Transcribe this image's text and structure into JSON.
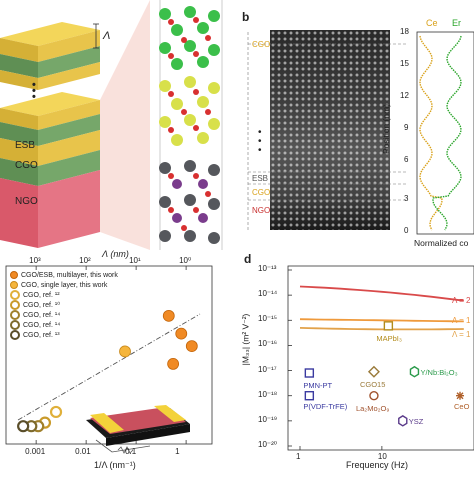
{
  "panel_a": {
    "lambda_label": "Λ",
    "layer_labels": [
      "ESB",
      "CGO",
      "NGO"
    ],
    "dots": "•\n•\n•"
  },
  "panel_b": {
    "letter": "b",
    "stem_labels": [
      "CGO",
      "ESB",
      "CGO",
      "NGO"
    ],
    "eels_legend": [
      "Ce",
      "Er"
    ],
    "position_label": "Position (nm)",
    "position_ticks": [
      "0",
      "3",
      "6",
      "9",
      "12",
      "15",
      "18"
    ],
    "normalized_label": "Normalized co",
    "colors": {
      "ce": "#d9a21b",
      "er": "#2aa52a",
      "cgo_label": "#d9a21b",
      "ngo_label": "#c8302f"
    }
  },
  "panel_c": {
    "top_axis_label": "Λ (nm)",
    "bottom_axis_label": "1/Λ (nm⁻¹)",
    "top_ticks": [
      "10³",
      "10²",
      "10¹",
      "10⁰"
    ],
    "bottom_ticks": [
      "0.001",
      "0.01",
      "0.1",
      "1"
    ],
    "legend": [
      "CGO/ESB, multilayer, this work",
      "CGO, single layer, this work",
      "CGO, ref. ¹²",
      "CGO, ref. ¹⁰",
      "CGO, ref. ¹⁴",
      "CGO, ref. ¹⁴",
      "CGO, ref. ¹³"
    ],
    "chart_data": {
      "type": "scatter",
      "xlabel": "1/Λ (nm⁻¹)",
      "x_scale": "log",
      "xlim": [
        0.0003,
        2.5
      ],
      "series": [
        {
          "name": "CGO/ESB, multilayer, this work",
          "x": [
            0.45,
            0.8,
            1.3,
            0.55
          ],
          "y": [
            0.72,
            0.62,
            0.55,
            0.45
          ]
        },
        {
          "name": "CGO, single layer, this work",
          "x": [
            0.06
          ],
          "y": [
            0.52
          ]
        },
        {
          "name": "CGO, ref. ¹²",
          "x": [
            0.0025
          ],
          "y": [
            0.18
          ]
        },
        {
          "name": "CGO, ref. ¹⁰",
          "x": [
            0.0015
          ],
          "y": [
            0.12
          ]
        },
        {
          "name": "CGO, ref. ¹⁴",
          "x": [
            0.0011
          ],
          "y": [
            0.1
          ]
        },
        {
          "name": "CGO, ref. ¹⁴",
          "x": [
            0.0008
          ],
          "y": [
            0.1
          ]
        },
        {
          "name": "CGO, ref. ¹³",
          "x": [
            0.00055
          ],
          "y": [
            0.1
          ]
        }
      ]
    }
  },
  "panel_d": {
    "letter": "d",
    "ylabel": "|M₃₃| (m² V⁻²)",
    "xlabel": "Frequency (Hz)",
    "y_ticks": [
      "10⁻¹³",
      "10⁻¹⁴",
      "10⁻¹⁵",
      "10⁻¹⁶",
      "10⁻¹⁷",
      "10⁻¹⁸",
      "10⁻¹⁹",
      "10⁻²⁰"
    ],
    "x_ticks": [
      "1",
      "10"
    ],
    "curve_labels": [
      "Λ = 2",
      "Λ = 1",
      "Λ = 1"
    ],
    "points": [
      "MAPbI₃",
      "PMN-PT",
      "CGO15",
      "Y/Nb:Bi₂O₃",
      "P(VDF-TrFE)",
      "La₂Mo₂O₉",
      "YSZ",
      "CeO"
    ],
    "chart_data": {
      "type": "line",
      "xlabel": "Frequency (Hz)",
      "ylabel": "|M₃₃| (m² V⁻²)",
      "x_scale": "log",
      "y_scale": "log",
      "ylim": [
        1e-20,
        1e-13
      ],
      "series": [
        {
          "name": "Λ = 2",
          "x": [
            1,
            10,
            100
          ],
          "y": [
            2.2e-14,
            1.6e-14,
            6e-15
          ]
        },
        {
          "name": "Λ = 1",
          "x": [
            1,
            10,
            100
          ],
          "y": [
            1.1e-15,
            1e-15,
            9e-16
          ]
        },
        {
          "name": "Λ = 1",
          "x": [
            1,
            10,
            100
          ],
          "y": [
            5e-16,
            4e-16,
            4.5e-16
          ]
        }
      ],
      "materials": [
        {
          "name": "MAPbI₃",
          "x": 12,
          "y": 6e-16
        },
        {
          "name": "PMN-PT",
          "x": 1.3,
          "y": 8e-18
        },
        {
          "name": "CGO15",
          "x": 8,
          "y": 9e-18
        },
        {
          "name": "Y/Nb:Bi₂O₃",
          "x": 25,
          "y": 9e-18
        },
        {
          "name": "P(VDF-TrFE)",
          "x": 1.3,
          "y": 1e-18
        },
        {
          "name": "La₂Mo₂O₉",
          "x": 8,
          "y": 1e-18
        },
        {
          "name": "YSZ",
          "x": 18,
          "y": 1e-19
        },
        {
          "name": "CeO",
          "x": 90,
          "y": 1e-18
        }
      ]
    }
  }
}
